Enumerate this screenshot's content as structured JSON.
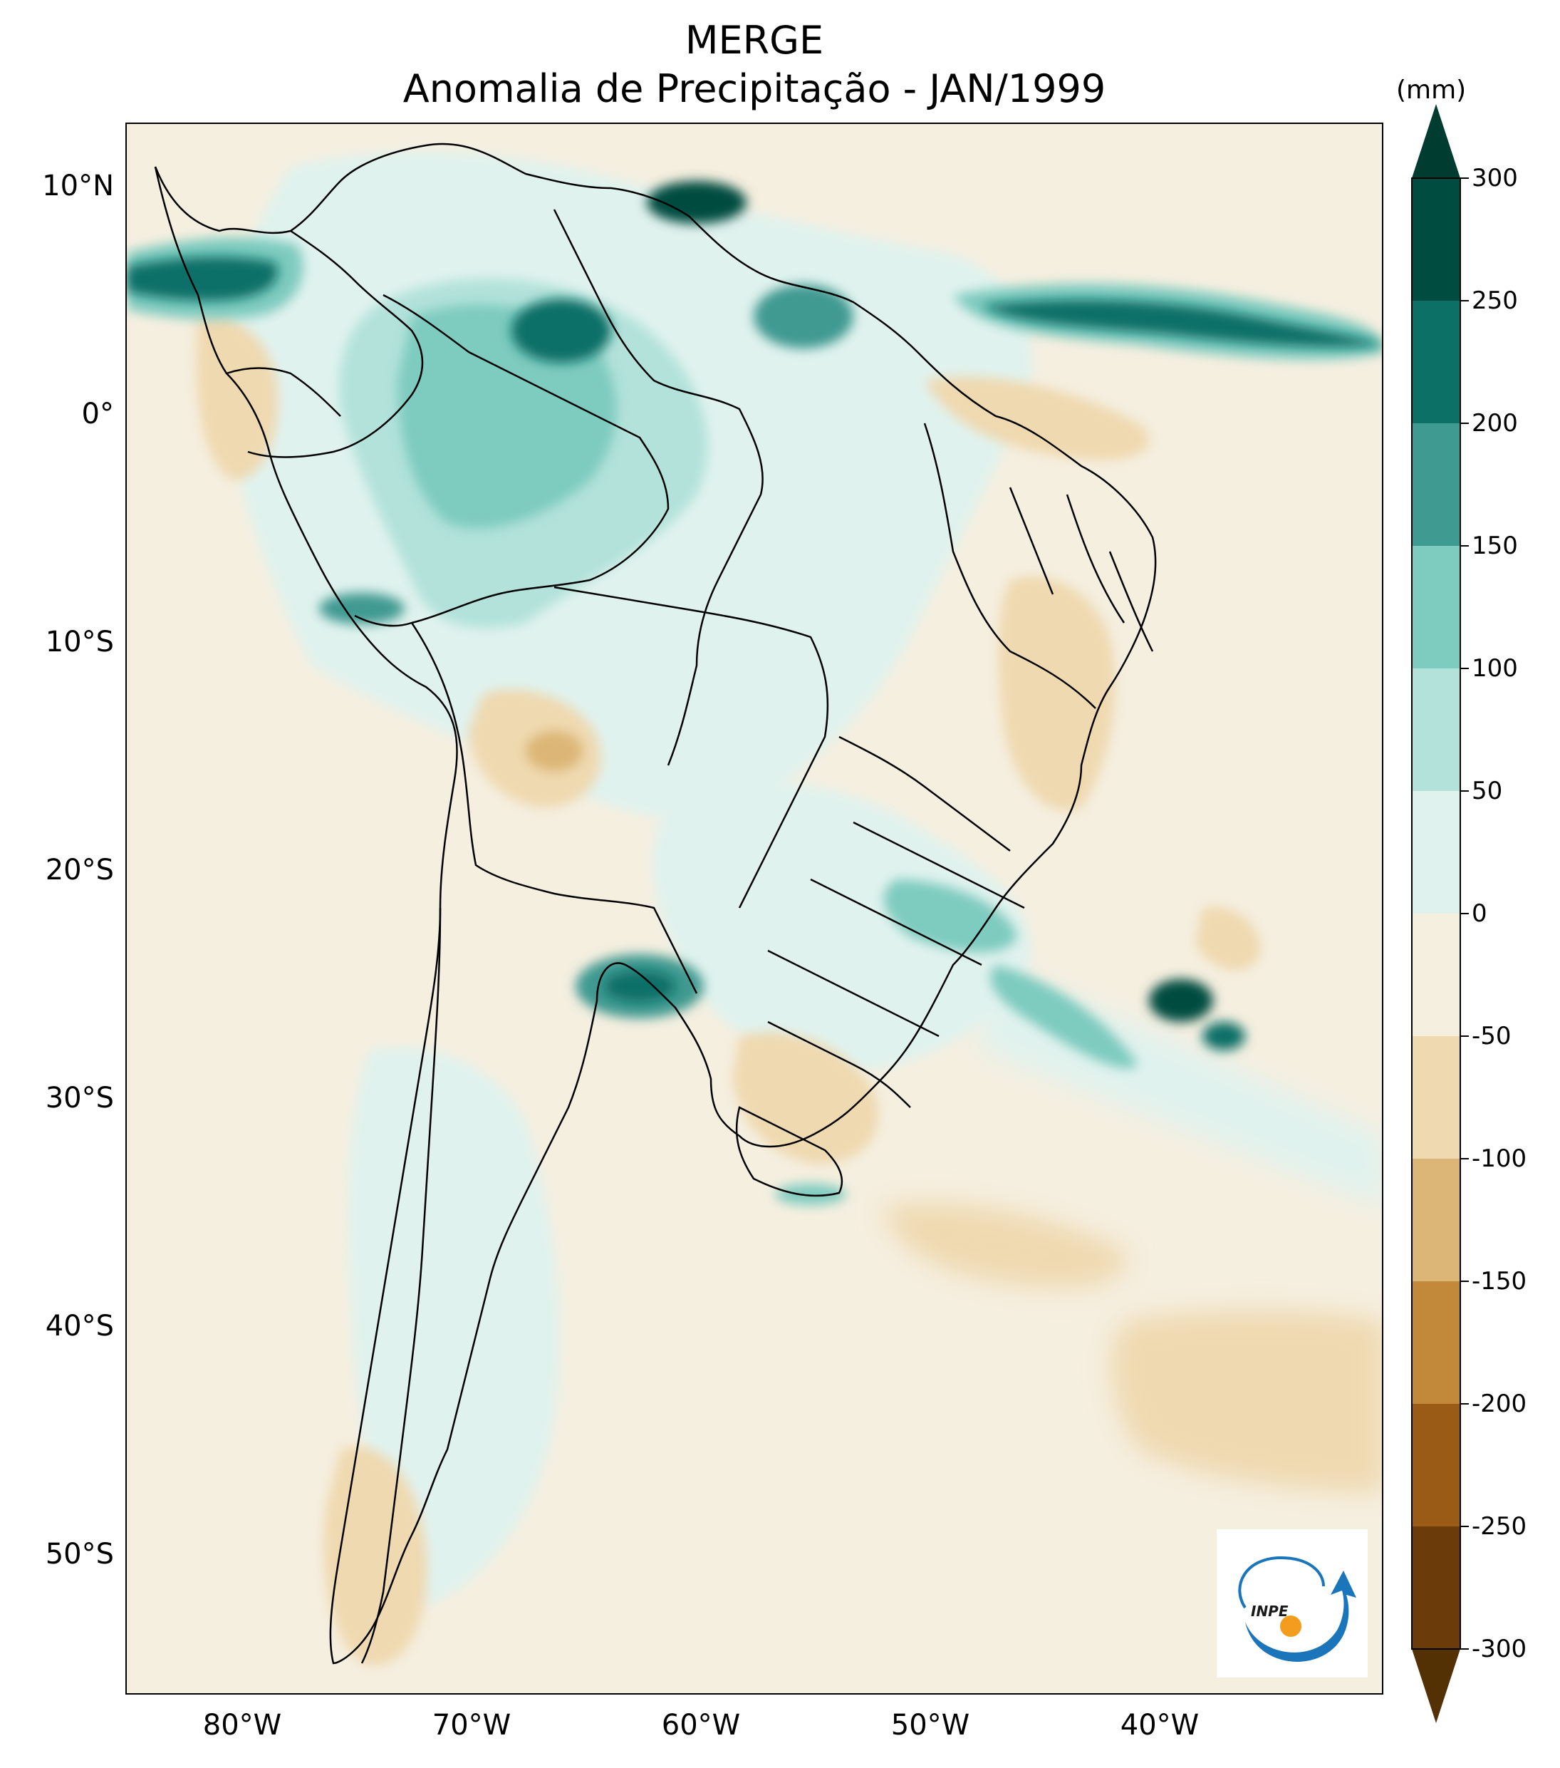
{
  "title": {
    "line1": "MERGE",
    "line2": "Anomalia de Precipitação - JAN/1999"
  },
  "axes": {
    "lat_labels": [
      "10°N",
      "0°",
      "10°S",
      "20°S",
      "30°S",
      "40°S",
      "50°S"
    ],
    "lat_values": [
      10,
      0,
      -10,
      -20,
      -30,
      -40,
      -50
    ],
    "lon_labels": [
      "80°W",
      "70°W",
      "60°W",
      "50°W",
      "40°W"
    ],
    "lon_values": [
      -80,
      -70,
      -60,
      -50,
      -40
    ],
    "lat_range": [
      -56,
      13
    ],
    "lon_range": [
      -85,
      -30
    ]
  },
  "colorbar": {
    "unit": "(mm)",
    "tick_labels": [
      "300",
      "250",
      "200",
      "150",
      "100",
      "50",
      "0",
      "-50",
      "-100",
      "-150",
      "-200",
      "-250",
      "-300"
    ],
    "levels": [
      300,
      250,
      200,
      150,
      100,
      50,
      0,
      -50,
      -100,
      -150,
      -200,
      -250,
      -300
    ],
    "colors_top_to_bottom": [
      "#014c40",
      "#0d7067",
      "#3f9a91",
      "#7ecbbf",
      "#b2e2da",
      "#e0f2ee",
      "#f5efe0",
      "#efd9b0",
      "#dbb676",
      "#c3893a",
      "#9a5b17",
      "#6b3b0a"
    ],
    "extend_max_color": "#003c30",
    "extend_min_color": "#543005"
  },
  "logo": {
    "text": "INPE",
    "colors": {
      "arrow": "#1a75bb",
      "dot": "#f39c1e"
    }
  },
  "map": {
    "ocean_color": "#f5efe0",
    "anomaly_regions": [
      {
        "name": "amazon-wet",
        "lon": -64,
        "lat": -2,
        "level": 100
      },
      {
        "name": "amazon-core",
        "lon": -65,
        "lat": 2.5,
        "level": 200
      },
      {
        "name": "caribbean-wet",
        "lon": -59,
        "lat": 8,
        "level": 250
      },
      {
        "name": "pacific-itcz-wet",
        "lon": -82,
        "lat": 5.5,
        "level": 250
      },
      {
        "name": "atlantic-itcz-wet",
        "lon": -40,
        "lat": 4.5,
        "level": 250
      },
      {
        "name": "guiana-wet",
        "lon": -55,
        "lat": 4,
        "level": 150
      },
      {
        "name": "paraguay-wet",
        "lon": -61,
        "lat": -25,
        "level": 200
      },
      {
        "name": "southeast-brazil-wet",
        "lon": -47,
        "lat": -22.5,
        "level": 150
      },
      {
        "name": "atlantic-south-wet",
        "lon": -37,
        "lat": -25.5,
        "level": 250
      },
      {
        "name": "bolivia-dry",
        "lon": -66,
        "lat": -15,
        "level": -100
      },
      {
        "name": "north-coast-dry",
        "lon": -48,
        "lat": -0.5,
        "level": -50
      },
      {
        "name": "patagonia-dry",
        "lon": -75,
        "lat": -52,
        "level": -50
      },
      {
        "name": "south-atlantic-dry",
        "lon": -36,
        "lat": -44,
        "level": -50
      }
    ]
  }
}
